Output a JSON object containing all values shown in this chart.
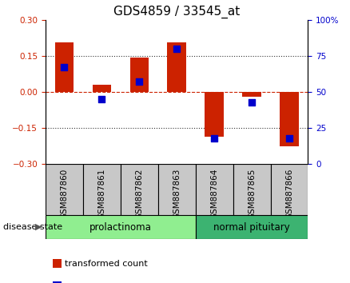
{
  "title": "GDS4859 / 33545_at",
  "samples": [
    "GSM887860",
    "GSM887861",
    "GSM887862",
    "GSM887863",
    "GSM887864",
    "GSM887865",
    "GSM887866"
  ],
  "transformed_count": [
    0.205,
    0.03,
    0.143,
    0.205,
    -0.185,
    -0.02,
    -0.225
  ],
  "percentile_rank": [
    67,
    45,
    57,
    80,
    18,
    43,
    18
  ],
  "ylim_left": [
    -0.3,
    0.3
  ],
  "ylim_right": [
    0,
    100
  ],
  "yticks_left": [
    -0.3,
    -0.15,
    0,
    0.15,
    0.3
  ],
  "yticks_right": [
    0,
    25,
    50,
    75,
    100
  ],
  "groups": [
    {
      "label": "prolactinoma",
      "start": 0,
      "end": 3,
      "color": "#90EE90"
    },
    {
      "label": "normal pituitary",
      "start": 4,
      "end": 6,
      "color": "#3CB371"
    }
  ],
  "group_label": "disease state",
  "bar_color": "#CC2200",
  "blue_color": "#0000CC",
  "bar_width": 0.5,
  "blue_size": 30,
  "hline_zero_color": "#CC2200",
  "dotted_line_color": "#333333",
  "background_plot": "#FFFFFF",
  "background_xtick": "#C8C8C8",
  "tick_label_fontsize": 7.5,
  "title_fontsize": 11,
  "legend_fontsize": 8,
  "group_label_fontsize": 8,
  "group_text_fontsize": 8.5,
  "arrow_label": "▶"
}
